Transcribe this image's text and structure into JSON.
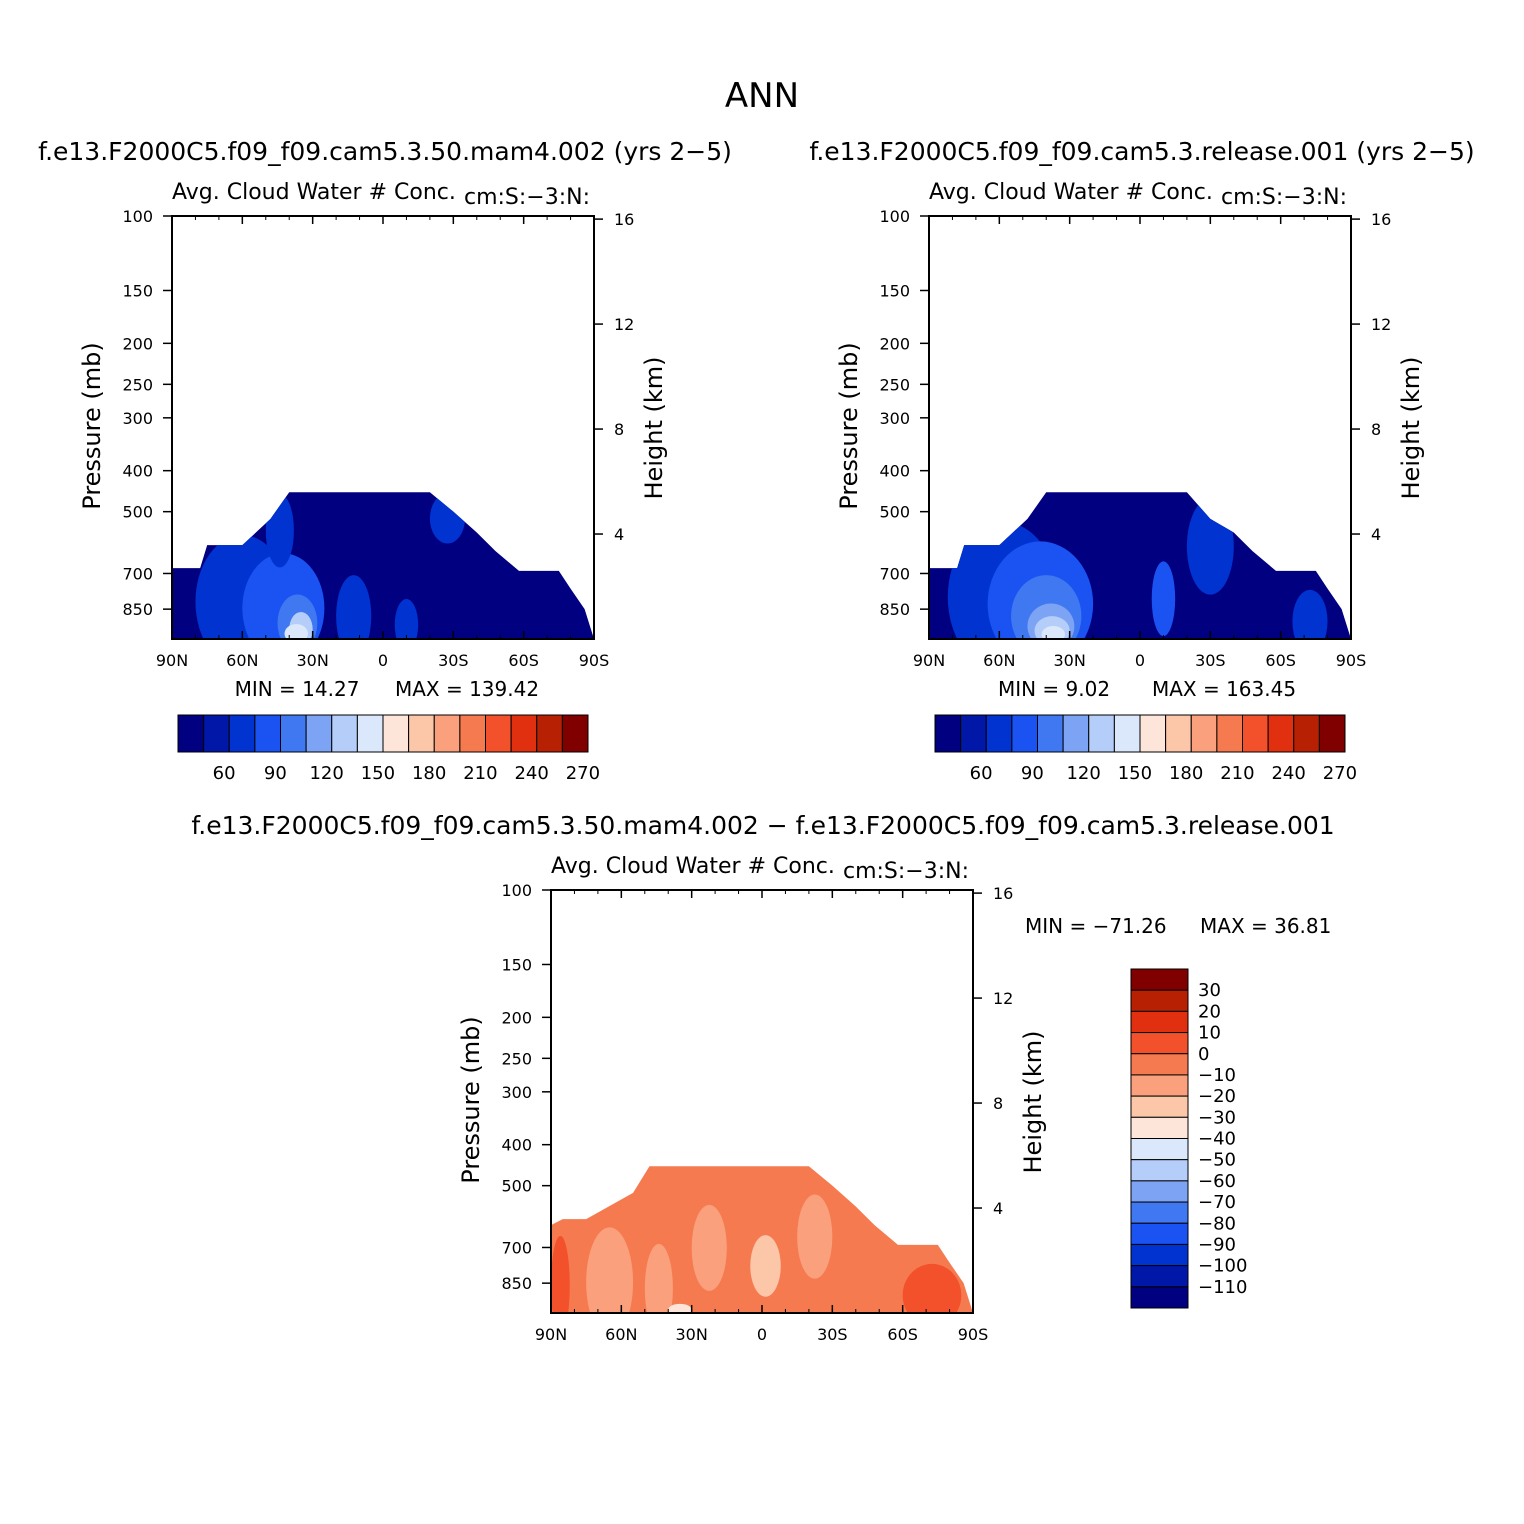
{
  "figure": {
    "title": "ANN",
    "top_left_caption": "f.e13.F2000C5.f09_f09.cam5.3.50.mam4.002 (yrs 2−5)",
    "top_right_caption": "f.e13.F2000C5.f09_f09.cam5.3.release.001 (yrs 2−5)",
    "bottom_caption": "f.e13.F2000C5.f09_f09.cam5.3.50.mam4.002 − f.e13.F2000C5.f09_f09.cam5.3.release.001"
  },
  "colors": {
    "sequential": [
      "#000080",
      "#0017a8",
      "#0033d0",
      "#1a53f2",
      "#3f78f0",
      "#7da3f5",
      "#b5cdf9",
      "#dbe8fb",
      "#fde6d9",
      "#fcc6a9",
      "#faa07c",
      "#f67a4f",
      "#f2512b",
      "#e03010",
      "#b82003",
      "#800000"
    ],
    "difference": [
      "#000080",
      "#0017a8",
      "#0033d0",
      "#1a53f2",
      "#3f78f0",
      "#7da3f5",
      "#b5cdf9",
      "#dbe8fb",
      "#fde6d9",
      "#fcc6a9",
      "#faa07c",
      "#f67a4f",
      "#f2512b",
      "#e03010",
      "#b82003",
      "#800000"
    ]
  },
  "chart_data": [
    {
      "type": "heatmap",
      "id": "panel-mam4",
      "title": "Avg. Cloud Water # Conc.",
      "units_label": "cm:S:−3:N:",
      "ylabel": "Pressure (mb)",
      "y2label": "Height (km)",
      "x_ticks": [
        "90N",
        "60N",
        "30N",
        "0",
        "30S",
        "60S",
        "90S"
      ],
      "x_tick_values": [
        90,
        60,
        30,
        0,
        -30,
        -60,
        -90
      ],
      "y_ticks": [
        "100",
        "150",
        "200",
        "250",
        "300",
        "400",
        "500",
        "700",
        "850"
      ],
      "y_tick_values": [
        100,
        150,
        200,
        250,
        300,
        400,
        500,
        700,
        850
      ],
      "y2_ticks": [
        "16",
        "12",
        "8",
        "4"
      ],
      "y2_tick_values": [
        16,
        12,
        8,
        4
      ],
      "ylim": [
        100,
        1000
      ],
      "xlim": [
        90,
        -90
      ],
      "stats": {
        "min": "MIN =   14.27",
        "max": "MAX = 139.42"
      },
      "colorbar": {
        "orientation": "horizontal",
        "labels": [
          "60",
          "90",
          "120",
          "150",
          "180",
          "210",
          "240",
          "270"
        ]
      },
      "field": {
        "top_pressure_profile": [
          [
            90,
            680
          ],
          [
            78,
            680
          ],
          [
            75,
            600
          ],
          [
            60,
            600
          ],
          [
            48,
            520
          ],
          [
            40,
            450
          ],
          [
            30,
            450
          ],
          [
            0,
            450
          ],
          [
            -20,
            450
          ],
          [
            -30,
            500
          ],
          [
            -40,
            560
          ],
          [
            -48,
            620
          ],
          [
            -58,
            690
          ],
          [
            -75,
            690
          ],
          [
            -80,
            760
          ],
          [
            -86,
            850
          ],
          [
            -90,
            1000
          ]
        ],
        "regions": [
          {
            "lat": [
              80,
              40
            ],
            "p": [
              560,
              1000
            ],
            "level": 2
          },
          {
            "lat": [
              60,
              25
            ],
            "p": [
              620,
              1000
            ],
            "level": 3
          },
          {
            "lat": [
              45,
              28
            ],
            "p": [
              780,
              1000
            ],
            "level": 4
          },
          {
            "lat": [
              40,
              30
            ],
            "p": [
              860,
              1000
            ],
            "level": 6
          },
          {
            "lat": [
              42,
              32
            ],
            "p": [
              920,
              1000
            ],
            "level": 7
          },
          {
            "lat": [
              50,
              38
            ],
            "p": [
              450,
              620
            ],
            "level": 2
          },
          {
            "lat": [
              20,
              5
            ],
            "p": [
              700,
              1000
            ],
            "level": 2
          },
          {
            "lat": [
              -5,
              -15
            ],
            "p": [
              800,
              1000
            ],
            "level": 2
          },
          {
            "lat": [
              -20,
              -35
            ],
            "p": [
              450,
              560
            ],
            "level": 2
          }
        ]
      }
    },
    {
      "type": "heatmap",
      "id": "panel-release",
      "title": "Avg. Cloud Water # Conc.",
      "units_label": "cm:S:−3:N:",
      "ylabel": "Pressure (mb)",
      "y2label": "Height (km)",
      "x_ticks": [
        "90N",
        "60N",
        "30N",
        "0",
        "30S",
        "60S",
        "90S"
      ],
      "x_tick_values": [
        90,
        60,
        30,
        0,
        -30,
        -60,
        -90
      ],
      "y_ticks": [
        "100",
        "150",
        "200",
        "250",
        "300",
        "400",
        "500",
        "700",
        "850"
      ],
      "y_tick_values": [
        100,
        150,
        200,
        250,
        300,
        400,
        500,
        700,
        850
      ],
      "y2_ticks": [
        "16",
        "12",
        "8",
        "4"
      ],
      "y2_tick_values": [
        16,
        12,
        8,
        4
      ],
      "ylim": [
        100,
        1000
      ],
      "xlim": [
        90,
        -90
      ],
      "stats": {
        "min": "MIN =    9.02",
        "max": "MAX = 163.45"
      },
      "colorbar": {
        "orientation": "horizontal",
        "labels": [
          "60",
          "90",
          "120",
          "150",
          "180",
          "210",
          "240",
          "270"
        ]
      },
      "field": {
        "top_pressure_profile": [
          [
            90,
            680
          ],
          [
            78,
            680
          ],
          [
            75,
            600
          ],
          [
            60,
            600
          ],
          [
            48,
            520
          ],
          [
            40,
            450
          ],
          [
            30,
            450
          ],
          [
            0,
            450
          ],
          [
            -20,
            450
          ],
          [
            -30,
            520
          ],
          [
            -40,
            560
          ],
          [
            -48,
            620
          ],
          [
            -58,
            690
          ],
          [
            -75,
            690
          ],
          [
            -80,
            760
          ],
          [
            -86,
            850
          ],
          [
            -90,
            1000
          ]
        ],
        "regions": [
          {
            "lat": [
              82,
              35
            ],
            "p": [
              520,
              1000
            ],
            "level": 2
          },
          {
            "lat": [
              65,
              20
            ],
            "p": [
              580,
              1000
            ],
            "level": 3
          },
          {
            "lat": [
              55,
              25
            ],
            "p": [
              700,
              1000
            ],
            "level": 4
          },
          {
            "lat": [
              48,
              28
            ],
            "p": [
              820,
              1000
            ],
            "level": 5
          },
          {
            "lat": [
              45,
              30
            ],
            "p": [
              880,
              1000
            ],
            "level": 6
          },
          {
            "lat": [
              42,
              32
            ],
            "p": [
              930,
              1000
            ],
            "level": 7
          },
          {
            "lat": [
              -20,
              -40
            ],
            "p": [
              460,
              700
            ],
            "level": 2
          },
          {
            "lat": [
              -5,
              -15
            ],
            "p": [
              650,
              900
            ],
            "level": 3
          },
          {
            "lat": [
              -65,
              -80
            ],
            "p": [
              760,
              1000
            ],
            "level": 2
          }
        ]
      }
    },
    {
      "type": "heatmap",
      "id": "panel-diff",
      "title": "Avg. Cloud Water # Conc.",
      "units_label": "cm:S:−3:N:",
      "ylabel": "Pressure (mb)",
      "y2label": "Height (km)",
      "x_ticks": [
        "90N",
        "60N",
        "30N",
        "0",
        "30S",
        "60S",
        "90S"
      ],
      "x_tick_values": [
        90,
        60,
        30,
        0,
        -30,
        -60,
        -90
      ],
      "y_ticks": [
        "100",
        "150",
        "200",
        "250",
        "300",
        "400",
        "500",
        "700",
        "850"
      ],
      "y_tick_values": [
        100,
        150,
        200,
        250,
        300,
        400,
        500,
        700,
        850
      ],
      "y2_ticks": [
        "16",
        "12",
        "8",
        "4"
      ],
      "y2_tick_values": [
        16,
        12,
        8,
        4
      ],
      "ylim": [
        100,
        1000
      ],
      "xlim": [
        90,
        -90
      ],
      "stats": {
        "min": "MIN = −71.26",
        "max": "MAX =   36.81"
      },
      "colorbar": {
        "orientation": "vertical",
        "labels": [
          "30",
          "20",
          "10",
          "0",
          "−10",
          "−20",
          "−30",
          "−40",
          "−50",
          "−60",
          "−70",
          "−80",
          "−90",
          "−100",
          "−110"
        ]
      },
      "field": {
        "background_level": 11,
        "top_pressure_profile": [
          [
            90,
            620
          ],
          [
            85,
            600
          ],
          [
            75,
            600
          ],
          [
            55,
            520
          ],
          [
            48,
            450
          ],
          [
            30,
            450
          ],
          [
            0,
            450
          ],
          [
            -20,
            450
          ],
          [
            -30,
            500
          ],
          [
            -40,
            560
          ],
          [
            -48,
            620
          ],
          [
            -58,
            690
          ],
          [
            -75,
            690
          ],
          [
            -80,
            760
          ],
          [
            -86,
            850
          ],
          [
            -90,
            1000
          ]
        ],
        "regions": [
          {
            "lat": [
              75,
              55
            ],
            "p": [
              620,
              1000
            ],
            "level": 10
          },
          {
            "lat": [
              50,
              38
            ],
            "p": [
              680,
              1000
            ],
            "level": 10
          },
          {
            "lat": [
              30,
              15
            ],
            "p": [
              550,
              800
            ],
            "level": 10
          },
          {
            "lat": [
              5,
              -8
            ],
            "p": [
              650,
              850
            ],
            "level": 9
          },
          {
            "lat": [
              -15,
              -30
            ],
            "p": [
              520,
              750
            ],
            "level": 10
          },
          {
            "lat": [
              90,
              82
            ],
            "p": [
              650,
              1000
            ],
            "level": 12
          },
          {
            "lat": [
              -60,
              -85
            ],
            "p": [
              760,
              1000
            ],
            "level": 12
          },
          {
            "lat": [
              40,
              30
            ],
            "p": [
              950,
              1000
            ],
            "level": 8
          }
        ]
      }
    }
  ]
}
